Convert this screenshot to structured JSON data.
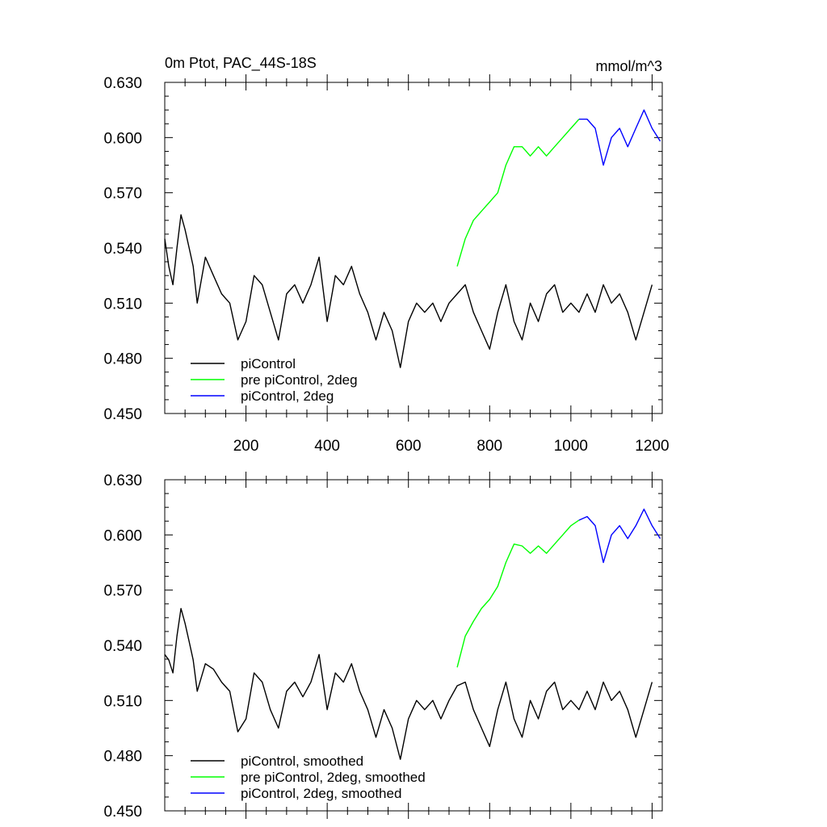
{
  "title_left": "0m Ptot, PAC_44S-18S",
  "title_right": "mmol/m^3",
  "colors": {
    "piControl": "#000000",
    "pre_2deg": "#00ff00",
    "piControl_2deg": "#0000ff"
  },
  "chart_data": [
    {
      "type": "line",
      "title": "0m Ptot, PAC_44S-18S",
      "units": "mmol/m^3",
      "xlim": [
        0,
        1225
      ],
      "ylim": [
        0.45,
        0.63
      ],
      "x_ticks": [
        200,
        400,
        600,
        800,
        1000,
        1200
      ],
      "x_tick_labels": [
        "200",
        "400",
        "600",
        "800",
        "1000",
        "1200"
      ],
      "y_ticks": [
        0.45,
        0.48,
        0.51,
        0.54,
        0.57,
        0.6,
        0.63
      ],
      "y_tick_labels": [
        "0.450",
        "0.480",
        "0.510",
        "0.540",
        "0.570",
        "0.600",
        "0.630"
      ],
      "legend_position": "bottom-left",
      "series": [
        {
          "name": "piControl",
          "color": "#000000",
          "x": [
            0,
            10,
            20,
            30,
            40,
            50,
            60,
            70,
            80,
            100,
            120,
            140,
            160,
            180,
            200,
            220,
            240,
            260,
            280,
            300,
            320,
            340,
            360,
            380,
            400,
            420,
            440,
            460,
            480,
            500,
            520,
            540,
            560,
            580,
            600,
            620,
            640,
            660,
            680,
            700,
            720,
            740,
            760,
            780,
            800,
            820,
            840,
            860,
            880,
            900,
            920,
            940,
            960,
            980,
            1000,
            1020,
            1040,
            1060,
            1080,
            1100,
            1120,
            1140,
            1160,
            1180,
            1200
          ],
          "y": [
            0.545,
            0.53,
            0.52,
            0.54,
            0.558,
            0.55,
            0.54,
            0.53,
            0.51,
            0.535,
            0.525,
            0.515,
            0.51,
            0.49,
            0.5,
            0.525,
            0.52,
            0.505,
            0.49,
            0.515,
            0.52,
            0.51,
            0.52,
            0.535,
            0.5,
            0.525,
            0.52,
            0.53,
            0.515,
            0.505,
            0.49,
            0.505,
            0.495,
            0.475,
            0.5,
            0.51,
            0.505,
            0.51,
            0.5,
            0.51,
            0.515,
            0.52,
            0.505,
            0.495,
            0.485,
            0.505,
            0.52,
            0.5,
            0.49,
            0.51,
            0.5,
            0.515,
            0.52,
            0.505,
            0.51,
            0.505,
            0.515,
            0.505,
            0.52,
            0.51,
            0.515,
            0.505,
            0.49,
            0.505,
            0.52
          ]
        },
        {
          "name": "pre piControl, 2deg",
          "color": "#00ff00",
          "x": [
            720,
            740,
            760,
            780,
            800,
            820,
            840,
            860,
            880,
            900,
            920,
            940,
            960,
            980,
            1000,
            1020
          ],
          "y": [
            0.53,
            0.545,
            0.555,
            0.56,
            0.565,
            0.57,
            0.585,
            0.595,
            0.595,
            0.59,
            0.595,
            0.59,
            0.595,
            0.6,
            0.605,
            0.61
          ]
        },
        {
          "name": "piControl, 2deg",
          "color": "#0000ff",
          "x": [
            1020,
            1040,
            1060,
            1080,
            1100,
            1120,
            1140,
            1160,
            1180,
            1200,
            1220
          ],
          "y": [
            0.61,
            0.61,
            0.605,
            0.585,
            0.6,
            0.605,
            0.595,
            0.605,
            0.615,
            0.605,
            0.598
          ]
        }
      ]
    },
    {
      "type": "line",
      "xlim": [
        0,
        1225
      ],
      "ylim": [
        0.45,
        0.63
      ],
      "y_ticks": [
        0.45,
        0.48,
        0.51,
        0.54,
        0.57,
        0.6,
        0.63
      ],
      "y_tick_labels": [
        "0.450",
        "0.480",
        "0.510",
        "0.540",
        "0.570",
        "0.600",
        "0.630"
      ],
      "legend_position": "bottom-left",
      "series": [
        {
          "name": "piControl, smoothed",
          "color": "#000000",
          "x": [
            0,
            10,
            20,
            30,
            40,
            50,
            60,
            70,
            80,
            100,
            120,
            140,
            160,
            180,
            200,
            220,
            240,
            260,
            280,
            300,
            320,
            340,
            360,
            380,
            400,
            420,
            440,
            460,
            480,
            500,
            520,
            540,
            560,
            580,
            600,
            620,
            640,
            660,
            680,
            700,
            720,
            740,
            760,
            780,
            800,
            820,
            840,
            860,
            880,
            900,
            920,
            940,
            960,
            980,
            1000,
            1020,
            1040,
            1060,
            1080,
            1100,
            1120,
            1140,
            1160,
            1180,
            1200
          ],
          "y": [
            0.535,
            0.532,
            0.525,
            0.545,
            0.56,
            0.552,
            0.542,
            0.532,
            0.515,
            0.53,
            0.527,
            0.52,
            0.515,
            0.493,
            0.5,
            0.525,
            0.52,
            0.505,
            0.495,
            0.515,
            0.52,
            0.512,
            0.52,
            0.535,
            0.505,
            0.525,
            0.52,
            0.53,
            0.515,
            0.505,
            0.49,
            0.505,
            0.495,
            0.478,
            0.5,
            0.51,
            0.505,
            0.51,
            0.5,
            0.51,
            0.518,
            0.52,
            0.505,
            0.495,
            0.485,
            0.505,
            0.52,
            0.5,
            0.49,
            0.51,
            0.5,
            0.515,
            0.52,
            0.505,
            0.51,
            0.505,
            0.515,
            0.505,
            0.52,
            0.51,
            0.515,
            0.505,
            0.49,
            0.505,
            0.52
          ]
        },
        {
          "name": "pre piControl, 2deg, smoothed",
          "color": "#00ff00",
          "x": [
            720,
            740,
            760,
            780,
            800,
            820,
            840,
            860,
            880,
            900,
            920,
            940,
            960,
            980,
            1000,
            1020
          ],
          "y": [
            0.528,
            0.545,
            0.553,
            0.56,
            0.565,
            0.572,
            0.585,
            0.595,
            0.594,
            0.59,
            0.594,
            0.59,
            0.595,
            0.6,
            0.605,
            0.608
          ]
        },
        {
          "name": "piControl, 2deg, smoothed",
          "color": "#0000ff",
          "x": [
            1020,
            1040,
            1060,
            1080,
            1100,
            1120,
            1140,
            1160,
            1180,
            1200,
            1220
          ],
          "y": [
            0.608,
            0.61,
            0.605,
            0.585,
            0.6,
            0.605,
            0.598,
            0.605,
            0.614,
            0.605,
            0.598
          ]
        }
      ]
    }
  ]
}
